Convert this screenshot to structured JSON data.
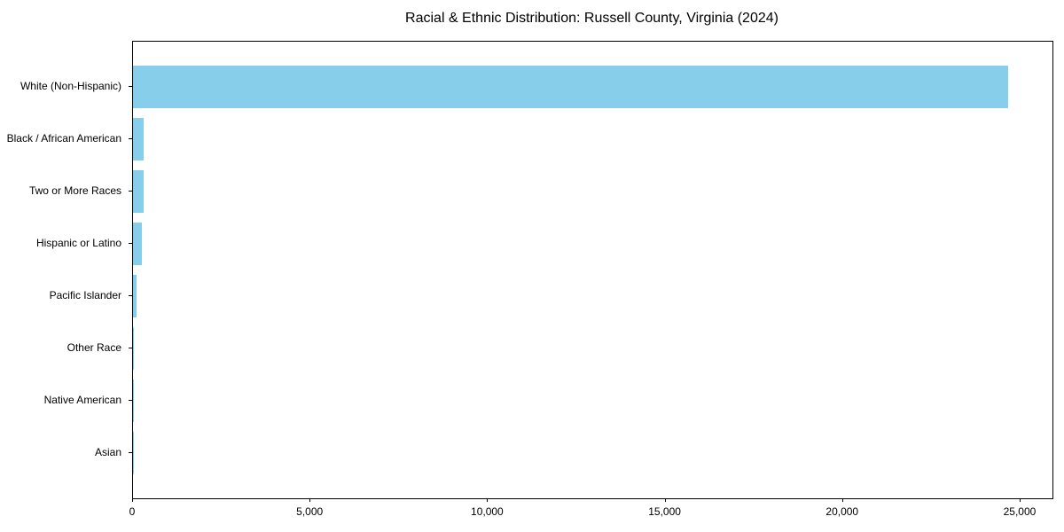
{
  "title": "Racial & Ethnic Distribution: Russell County, Virginia (2024)",
  "chart_data": {
    "type": "bar",
    "orientation": "horizontal",
    "title": "Racial & Ethnic Distribution: Russell County, Virginia (2024)",
    "categories": [
      "White (Non-Hispanic)",
      "Black / African American",
      "Two or More Races",
      "Hispanic or Latino",
      "Pacific Islander",
      "Other Race",
      "Native American",
      "Asian"
    ],
    "values": [
      24650,
      310,
      290,
      250,
      95,
      30,
      20,
      8
    ],
    "xlabel": "",
    "ylabel": "",
    "xlim": [
      0,
      25900
    ],
    "x_ticks": [
      0,
      5000,
      10000,
      15000,
      20000,
      25000
    ],
    "x_tick_labels": [
      "0",
      "5,000",
      "10,000",
      "15,000",
      "20,000",
      "25,000"
    ],
    "bar_color": "#87CEEB",
    "axis_color": "#000000",
    "grid": false,
    "legend": null
  }
}
